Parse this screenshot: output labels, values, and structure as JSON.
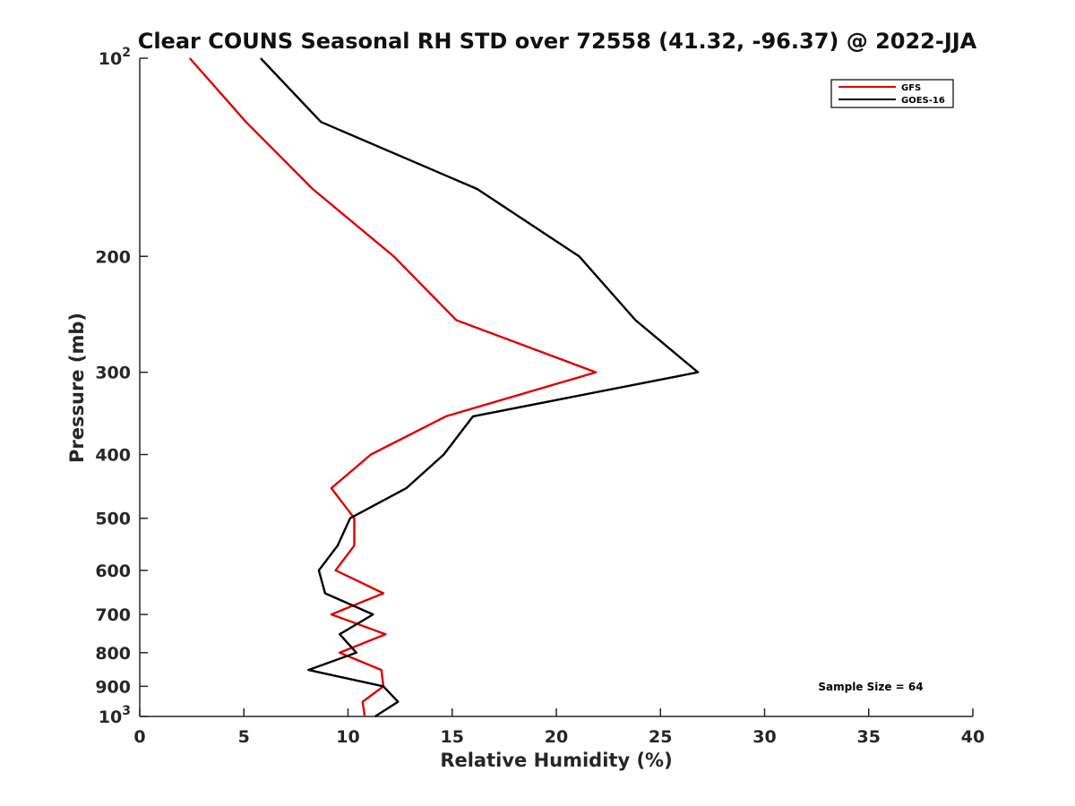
{
  "chart_data": {
    "type": "line",
    "title": "Clear COUNS Seasonal RH STD over 72558 (41.32, -96.37) @ 2022-JJA",
    "xlabel": "Relative Humidity (%)",
    "ylabel": "Pressure (mb)",
    "xlim": [
      0,
      40
    ],
    "ylim": [
      100,
      1000
    ],
    "yscale": "log",
    "y_reversed": true,
    "grid": false,
    "xticks": [
      0,
      5,
      10,
      15,
      20,
      25,
      30,
      35,
      40
    ],
    "xtick_labels": [
      "0",
      "5",
      "10",
      "15",
      "20",
      "25",
      "30",
      "35",
      "40"
    ],
    "yticks": [
      {
        "value": 100,
        "base": "10",
        "exp": "2"
      },
      {
        "value": 200,
        "label": "200"
      },
      {
        "value": 300,
        "label": "300"
      },
      {
        "value": 400,
        "label": "400"
      },
      {
        "value": 500,
        "label": "500"
      },
      {
        "value": 600,
        "label": "600"
      },
      {
        "value": 700,
        "label": "700"
      },
      {
        "value": 800,
        "label": "800"
      },
      {
        "value": 900,
        "label": "900"
      },
      {
        "value": 1000,
        "base": "10",
        "exp": "3"
      }
    ],
    "legend_position": "top-right",
    "annotation": "Sample Size = 64",
    "series": [
      {
        "name": "GFS",
        "color": "#e00000",
        "points": [
          [
            2.4,
            100
          ],
          [
            5.1,
            125
          ],
          [
            8.3,
            158
          ],
          [
            12.2,
            200
          ],
          [
            15.2,
            250
          ],
          [
            21.9,
            300
          ],
          [
            14.7,
            350
          ],
          [
            11.1,
            400
          ],
          [
            9.2,
            450
          ],
          [
            10.3,
            500
          ],
          [
            10.3,
            550
          ],
          [
            9.4,
            600
          ],
          [
            11.7,
            650
          ],
          [
            9.2,
            700
          ],
          [
            11.8,
            750
          ],
          [
            9.6,
            800
          ],
          [
            11.6,
            850
          ],
          [
            11.7,
            900
          ],
          [
            10.7,
            950
          ],
          [
            10.8,
            1000
          ]
        ]
      },
      {
        "name": "GOES-16",
        "color": "#000000",
        "points": [
          [
            5.8,
            100
          ],
          [
            8.7,
            125
          ],
          [
            16.2,
            158
          ],
          [
            21.1,
            200
          ],
          [
            23.8,
            250
          ],
          [
            26.8,
            300
          ],
          [
            16.0,
            350
          ],
          [
            14.6,
            400
          ],
          [
            12.8,
            450
          ],
          [
            10.1,
            500
          ],
          [
            9.5,
            550
          ],
          [
            8.6,
            600
          ],
          [
            8.9,
            650
          ],
          [
            11.2,
            700
          ],
          [
            9.6,
            750
          ],
          [
            10.4,
            800
          ],
          [
            8.1,
            850
          ],
          [
            11.7,
            900
          ],
          [
            12.4,
            950
          ],
          [
            11.3,
            1000
          ]
        ]
      }
    ]
  }
}
